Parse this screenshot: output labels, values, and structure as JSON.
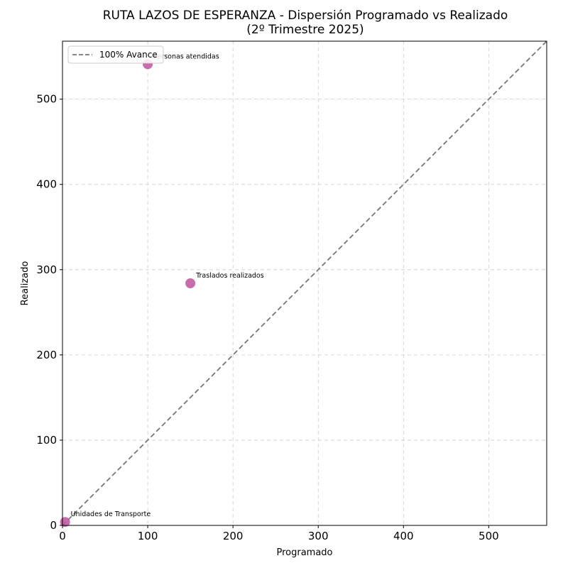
{
  "chart_data": {
    "type": "scatter",
    "title": "RUTA LAZOS DE ESPERANZA - Dispersión Programado vs Realizado",
    "subtitle": "(2º Trimestre 2025)",
    "xlabel": "Programado",
    "ylabel": "Realizado",
    "xlim": [
      0,
      568
    ],
    "ylim": [
      0,
      568
    ],
    "xticks": [
      0,
      100,
      200,
      300,
      400,
      500
    ],
    "yticks": [
      0,
      100,
      200,
      300,
      400,
      500
    ],
    "grid": true,
    "legend": {
      "position": "upper left",
      "entries": [
        "100% Avance"
      ]
    },
    "reference_line": {
      "label": "100% Avance",
      "style": "dashed",
      "color": "#777777",
      "from": [
        0,
        0
      ],
      "to": [
        568,
        568
      ]
    },
    "points": [
      {
        "label": "Personas atendidas",
        "x": 100,
        "y": 541
      },
      {
        "label": "Traslados realizados",
        "x": 150,
        "y": 284
      },
      {
        "label": "Unidades de Transporte",
        "x": 3,
        "y": 4
      }
    ],
    "point_color": "#c0529f"
  },
  "title_line1": "RUTA LAZOS DE ESPERANZA - Dispersión Programado vs Realizado",
  "title_line2": "(2º Trimestre 2025)"
}
